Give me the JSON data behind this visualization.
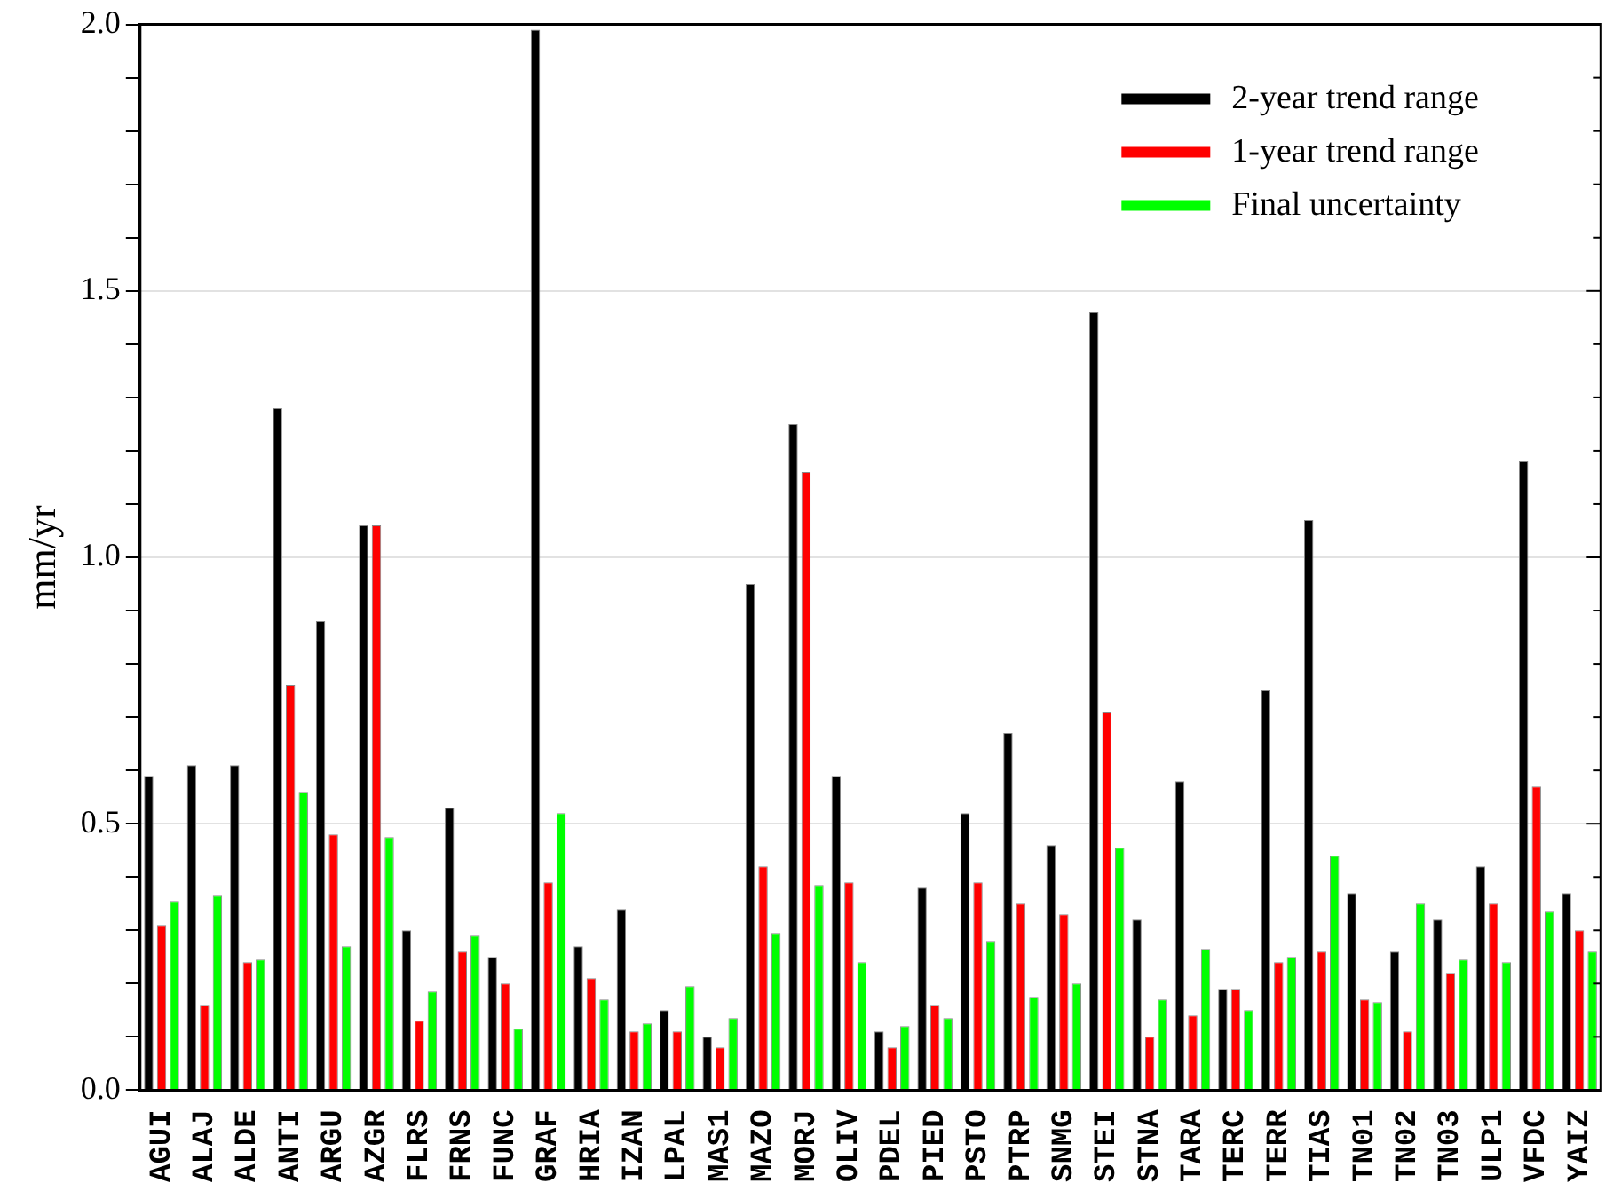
{
  "chart_data": {
    "type": "bar",
    "ylabel": "mm/yr",
    "categories": [
      "AGUI",
      "ALAJ",
      "ALDE",
      "ANTI",
      "ARGU",
      "AZGR",
      "FLRS",
      "FRNS",
      "FUNC",
      "GRAF",
      "HRIA",
      "IZAN",
      "LPAL",
      "MAS1",
      "MAZO",
      "MORJ",
      "OLIV",
      "PDEL",
      "PIED",
      "PSTO",
      "PTRP",
      "SNMG",
      "STEI",
      "STNA",
      "TARA",
      "TERC",
      "TERR",
      "TIAS",
      "TN01",
      "TN02",
      "TN03",
      "ULP1",
      "VFDC",
      "YAIZ"
    ],
    "series": [
      {
        "name": "2-year trend range",
        "color": "#000000",
        "values": [
          0.59,
          0.61,
          0.61,
          1.28,
          0.88,
          1.06,
          0.3,
          0.53,
          0.25,
          1.99,
          0.27,
          0.34,
          0.15,
          0.1,
          0.95,
          1.25,
          0.59,
          0.11,
          0.38,
          0.52,
          0.67,
          0.46,
          1.46,
          0.32,
          0.58,
          0.19,
          0.75,
          1.07,
          0.37,
          0.26,
          0.32,
          0.42,
          1.18,
          0.37
        ]
      },
      {
        "name": "1-year trend range",
        "color": "#ff0000",
        "values": [
          0.31,
          0.16,
          0.24,
          0.76,
          0.48,
          1.06,
          0.13,
          0.26,
          0.2,
          0.39,
          0.21,
          0.11,
          0.11,
          0.08,
          0.42,
          1.16,
          0.39,
          0.08,
          0.16,
          0.39,
          0.35,
          0.33,
          0.71,
          0.1,
          0.14,
          0.19,
          0.24,
          0.26,
          0.17,
          0.11,
          0.22,
          0.35,
          0.57,
          0.3
        ]
      },
      {
        "name": "Final uncertainty",
        "color": "#00ff00",
        "values": [
          0.355,
          0.365,
          0.245,
          0.56,
          0.27,
          0.475,
          0.185,
          0.29,
          0.115,
          0.52,
          0.17,
          0.125,
          0.195,
          0.135,
          0.295,
          0.385,
          0.24,
          0.12,
          0.135,
          0.28,
          0.175,
          0.2,
          0.455,
          0.17,
          0.265,
          0.15,
          0.25,
          0.44,
          0.165,
          0.35,
          0.245,
          0.24,
          0.335,
          0.26
        ]
      }
    ],
    "ylim": [
      0,
      2.0
    ],
    "yticks": [
      {
        "value": 0,
        "label": "0.0"
      },
      {
        "value": 0.1,
        "label": null
      },
      {
        "value": 0.2,
        "label": null
      },
      {
        "value": 0.3,
        "label": null
      },
      {
        "value": 0.4,
        "label": null
      },
      {
        "value": 0.5,
        "label": "0.5"
      },
      {
        "value": 0.6,
        "label": null
      },
      {
        "value": 0.7,
        "label": null
      },
      {
        "value": 0.8,
        "label": null
      },
      {
        "value": 0.9,
        "label": null
      },
      {
        "value": 1.0,
        "label": "1.0"
      },
      {
        "value": 1.1,
        "label": null
      },
      {
        "value": 1.2,
        "label": null
      },
      {
        "value": 1.3,
        "label": null
      },
      {
        "value": 1.4,
        "label": null
      },
      {
        "value": 1.5,
        "label": "1.5"
      },
      {
        "value": 1.6,
        "label": null
      },
      {
        "value": 1.7,
        "label": null
      },
      {
        "value": 1.8,
        "label": null
      },
      {
        "value": 1.9,
        "label": null
      },
      {
        "value": 2.0,
        "label": "2.0"
      }
    ],
    "grid": "y",
    "legend": "top right"
  }
}
